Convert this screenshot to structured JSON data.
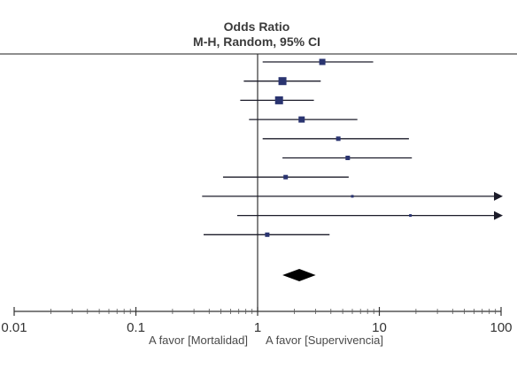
{
  "chart_data": {
    "type": "forest",
    "title": "Odds Ratio",
    "subtitle": "M-H, Random, 95% CI",
    "x_scale": "log",
    "xlim": [
      0.01,
      100
    ],
    "ticks": [
      {
        "value": 0.01,
        "label": "0.01"
      },
      {
        "value": 0.1,
        "label": "0.1"
      },
      {
        "value": 1,
        "label": "1"
      },
      {
        "value": 10,
        "label": "10"
      },
      {
        "value": 100,
        "label": "100"
      }
    ],
    "reference_value": 1,
    "favor_left": "A favor [Mortalidad]",
    "favor_right": "A favor [Supervivencia]",
    "studies": [
      {
        "or": 3.4,
        "lower": 1.1,
        "upper": 8.9,
        "weight": "medium"
      },
      {
        "or": 1.6,
        "lower": 0.77,
        "upper": 3.3,
        "weight": "large"
      },
      {
        "or": 1.5,
        "lower": 0.72,
        "upper": 2.9,
        "weight": "large"
      },
      {
        "or": 2.3,
        "lower": 0.85,
        "upper": 6.6,
        "weight": "medium"
      },
      {
        "or": 4.6,
        "lower": 1.1,
        "upper": 17.5,
        "weight": "small"
      },
      {
        "or": 5.5,
        "lower": 1.6,
        "upper": 18.5,
        "weight": "small"
      },
      {
        "or": 1.7,
        "lower": 0.52,
        "upper": 5.6,
        "weight": "small"
      },
      {
        "or": 6.0,
        "lower": 0.35,
        "upper": 100,
        "weight": "tiny",
        "arrow": true
      },
      {
        "or": 18.0,
        "lower": 0.68,
        "upper": 100,
        "weight": "tiny",
        "arrow": true
      },
      {
        "or": 1.2,
        "lower": 0.36,
        "upper": 3.9,
        "weight": "small"
      }
    ],
    "pooled": {
      "or": 2.2,
      "lower": 1.6,
      "upper": 3.0
    }
  }
}
